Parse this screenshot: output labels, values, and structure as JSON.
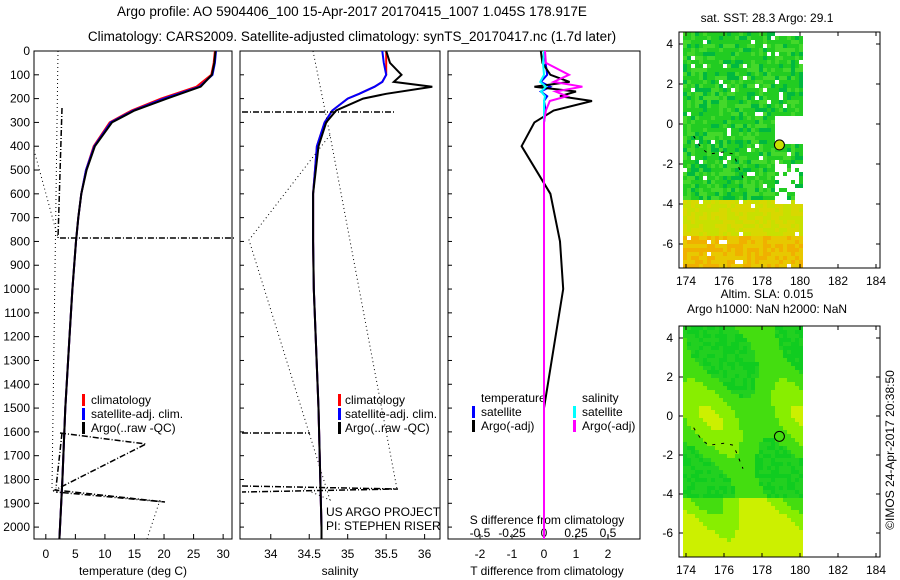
{
  "title_line1": "Argo profile: AO 5904406_100 15-Apr-2017 20170415_1007 1.045S 178.917E",
  "title_line2": "Climatology: CARS2009. Satellite-adjusted climatology: synTS_20170417.nc (1.7d later)",
  "colors": {
    "climatology": "#ff0000",
    "satellite": "#0000ff",
    "argo": "#000000",
    "sal_satellite": "#00ffff",
    "sal_argo": "#ff00ff"
  },
  "chart_data": [
    {
      "type": "line",
      "name": "temperature-profile",
      "xlabel": "temperature (deg C)",
      "ylabel": "",
      "xlim": [
        -2,
        31.5
      ],
      "ylim": [
        2050,
        0
      ],
      "xticks": [
        "0",
        "5",
        "10",
        "15",
        "20",
        "25",
        "30"
      ],
      "yticks": [
        "0",
        "100",
        "200",
        "300",
        "400",
        "500",
        "600",
        "700",
        "800",
        "900",
        "1000",
        "1100",
        "1200",
        "1300",
        "1400",
        "1500",
        "1600",
        "1700",
        "1800",
        "1900",
        "2000"
      ],
      "legend": [
        "climatology",
        "satellite-adj. clim.",
        "Argo(..raw -QC)"
      ],
      "depth": [
        0,
        50,
        100,
        150,
        200,
        250,
        300,
        400,
        500,
        600,
        700,
        800,
        1000,
        1200,
        1500,
        1800,
        2000,
        2050
      ],
      "series": [
        {
          "name": "climatology",
          "values": [
            28.6,
            28.4,
            28.0,
            25.5,
            19.5,
            14.5,
            10.8,
            8.1,
            6.8,
            6.0,
            5.5,
            5.1,
            4.5,
            4.0,
            3.3,
            2.8,
            2.4,
            2.3
          ]
        },
        {
          "name": "satellite-adj. clim.",
          "values": [
            28.8,
            28.6,
            28.2,
            26.0,
            20.0,
            14.8,
            11.0,
            8.2,
            6.8,
            6.0,
            5.5,
            5.1,
            4.5,
            4.0,
            3.3,
            2.8,
            2.4,
            2.3
          ]
        },
        {
          "name": "Argo(..raw -QC)",
          "values": [
            28.7,
            28.5,
            28.1,
            26.2,
            20.5,
            15.0,
            11.2,
            8.3,
            6.9,
            6.0,
            5.5,
            5.1,
            4.5,
            4.0,
            3.3,
            2.8,
            2.4,
            2.3
          ]
        }
      ]
    },
    {
      "type": "line",
      "name": "salinity-profile",
      "xlabel": "salinity",
      "xlim": [
        33.6,
        36.2
      ],
      "ylim": [
        2050,
        0
      ],
      "xticks": [
        "34",
        "34.5",
        "35",
        "35.5",
        "36"
      ],
      "legend": [
        "climatology",
        "satellite-adj. clim.",
        "Argo(..raw -QC)"
      ],
      "annotation": [
        "US ARGO PROJECT",
        "PI: STEPHEN RISER"
      ],
      "depth": [
        0,
        50,
        100,
        130,
        150,
        180,
        200,
        250,
        300,
        400,
        600,
        800,
        1000,
        1500,
        2000,
        2050
      ],
      "series": [
        {
          "name": "climatology",
          "values": [
            35.5,
            35.5,
            35.5,
            35.45,
            35.35,
            35.15,
            35.0,
            34.8,
            34.7,
            34.6,
            34.55,
            34.55,
            34.56,
            34.62,
            34.66,
            34.66
          ]
        },
        {
          "name": "satellite-adj. clim.",
          "values": [
            35.45,
            35.47,
            35.5,
            35.45,
            35.35,
            35.15,
            35.0,
            34.8,
            34.7,
            34.6,
            34.55,
            34.55,
            34.56,
            34.62,
            34.66,
            34.66
          ]
        },
        {
          "name": "Argo(..raw -QC)",
          "values": [
            35.5,
            35.55,
            35.7,
            35.6,
            36.1,
            35.5,
            35.2,
            34.85,
            34.72,
            34.62,
            34.55,
            34.55,
            34.56,
            34.62,
            34.66,
            34.66
          ]
        }
      ]
    },
    {
      "type": "line",
      "name": "difference-profile",
      "xlabel": "T difference from climatology",
      "xlabel_top": "S difference from climatology",
      "xlim": [
        -3,
        3
      ],
      "ylim": [
        2050,
        0
      ],
      "xticks": [
        "-2",
        "-1",
        "0",
        "1",
        "2"
      ],
      "xticks_top": [
        "-0.5",
        "-0.25",
        "0",
        "0.25",
        "0.5"
      ],
      "legend_temperature": {
        "title": "temperature",
        "items": [
          "satellite",
          "Argo(-adj)"
        ]
      },
      "legend_salinity": {
        "title": "salinity",
        "items": [
          "satellite",
          "Argo(-adj)"
        ]
      },
      "depth": [
        0,
        50,
        100,
        130,
        150,
        170,
        190,
        210,
        250,
        300,
        400,
        600,
        800,
        1000,
        1500,
        2000,
        2050
      ],
      "series": [
        {
          "name": "temperature satellite",
          "values": [
            0.0,
            0.05,
            0.1,
            -0.1,
            0.2,
            -0.1,
            0.1,
            0.0,
            0.05,
            0.0,
            0.0,
            0.0,
            0.0,
            0.0,
            0.0,
            0.0,
            0.0
          ]
        },
        {
          "name": "temperature Argo(-adj)",
          "values": [
            -0.1,
            -0.05,
            0.2,
            0.8,
            -0.3,
            1.0,
            0.5,
            1.5,
            0.3,
            -0.3,
            -0.7,
            0.2,
            0.5,
            0.6,
            0.0,
            0.0,
            0.0
          ]
        },
        {
          "name": "salinity satellite",
          "values": [
            0.0,
            -0.05,
            0.0,
            -0.2,
            0.1,
            -0.15,
            0.05,
            0.0,
            0.0,
            0.0,
            0.0,
            0.0,
            0.0,
            0.0,
            0.0,
            0.0,
            0.0
          ]
        },
        {
          "name": "salinity Argo(-adj)",
          "values": [
            0.05,
            0.1,
            1.3,
            0.5,
            2.0,
            0.6,
            1.2,
            0.3,
            0.1,
            0.0,
            0.0,
            0.0,
            0.0,
            0.0,
            0.0,
            0.0,
            0.0
          ]
        }
      ]
    },
    {
      "type": "heatmap",
      "name": "sst-map",
      "title": "sat. SST: 28.3 Argo: 29.1",
      "xlim": [
        174,
        184
      ],
      "ylim": [
        -7,
        5
      ],
      "xticks": [
        "174",
        "176",
        "178",
        "180",
        "182",
        "184"
      ],
      "yticks": [
        "4",
        "2",
        "0",
        "-2",
        "-4",
        "-6"
      ],
      "marker": {
        "lon": 178.917,
        "lat": -1.045
      }
    },
    {
      "type": "heatmap",
      "name": "sla-map",
      "title": "Altim. SLA: 0.015",
      "subtitle": "Argo h1000: NaN h2000: NaN",
      "xlim": [
        174,
        184
      ],
      "ylim": [
        -7,
        5
      ],
      "xticks": [
        "174",
        "176",
        "178",
        "180",
        "182",
        "184"
      ],
      "yticks": [
        "4",
        "2",
        "0",
        "-2",
        "-4",
        "-6"
      ],
      "marker": {
        "lon": 178.917,
        "lat": -1.045
      }
    }
  ],
  "footer_stamp": "©IMOS 24-Apr-2017 20:38:50"
}
